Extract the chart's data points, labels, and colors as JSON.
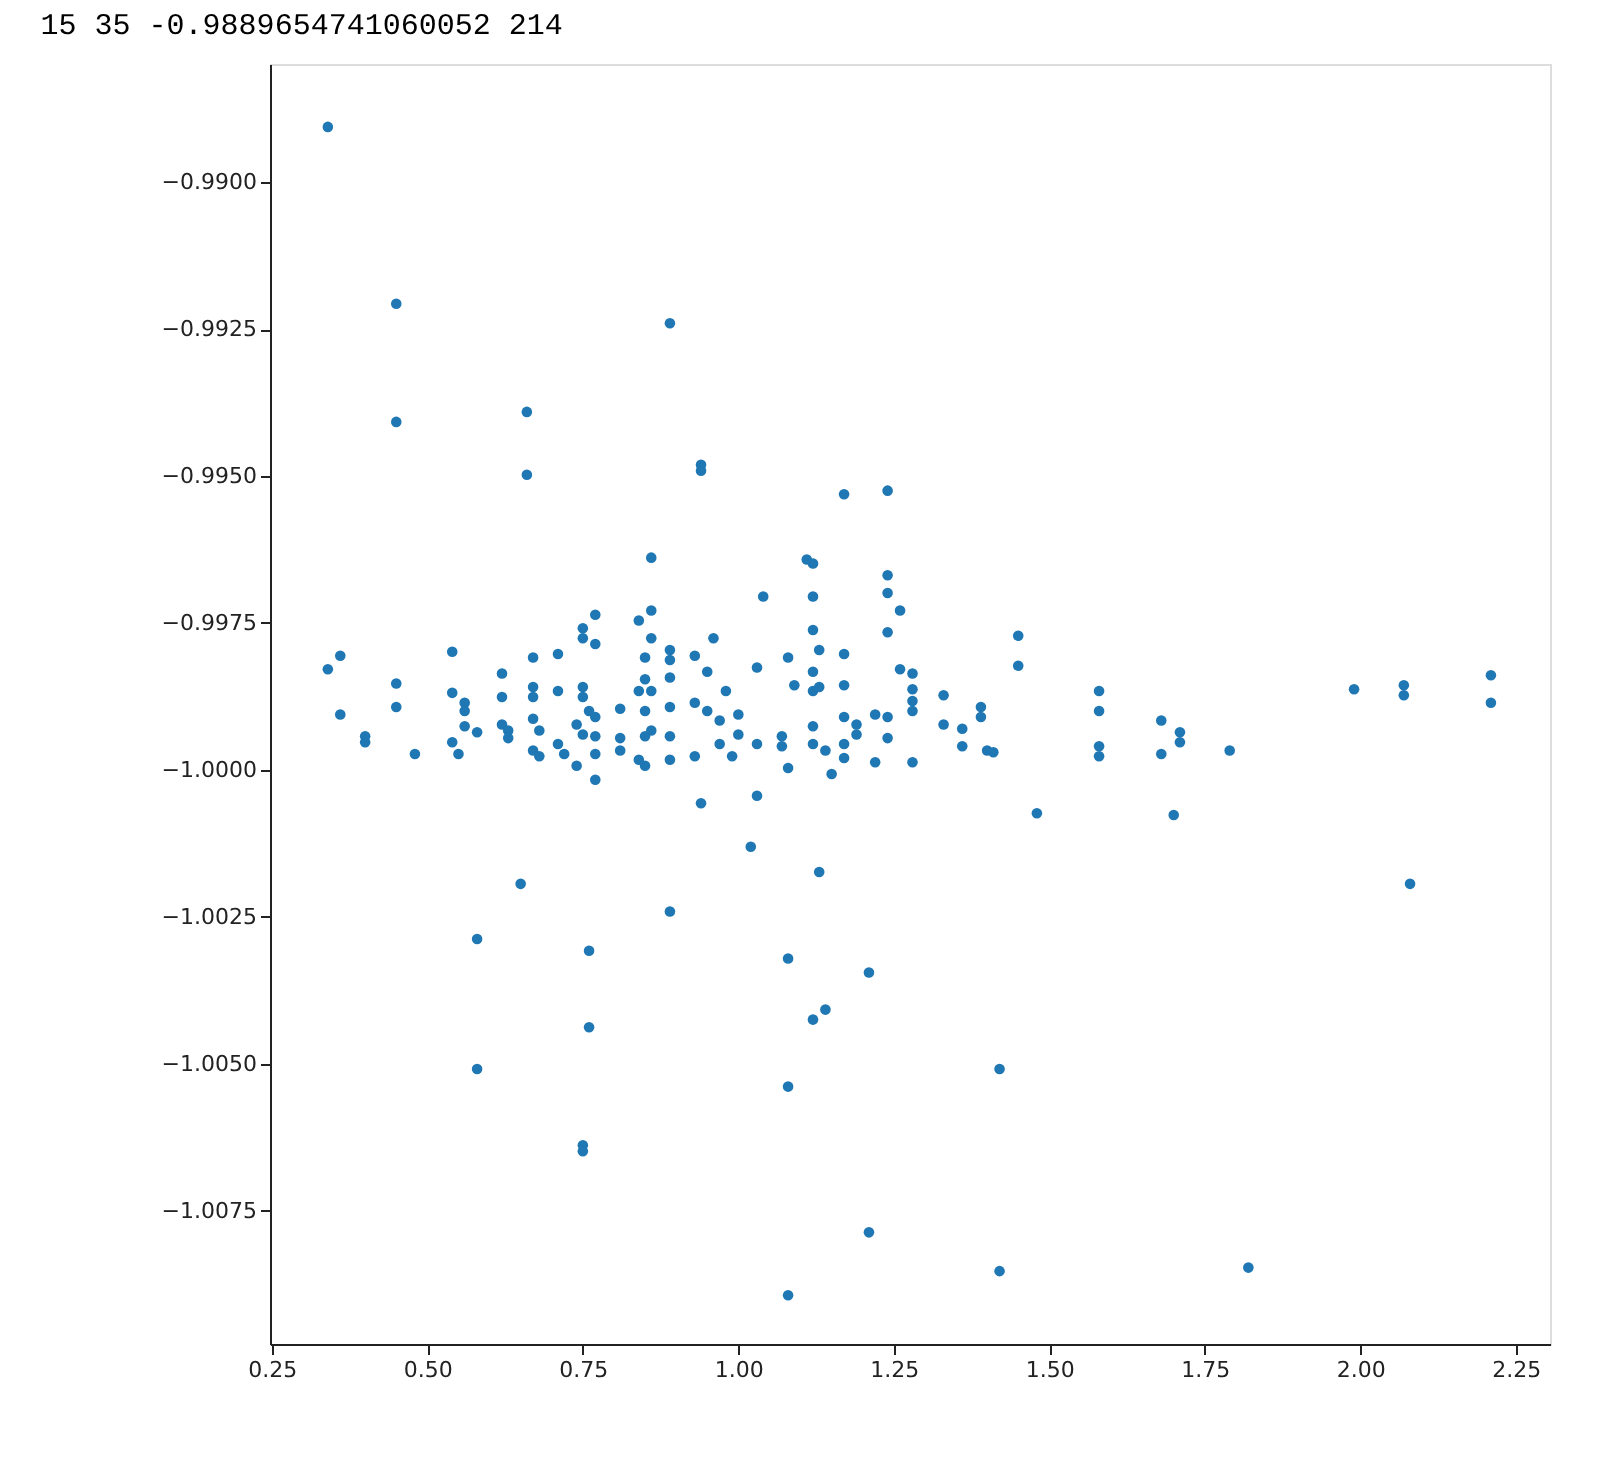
{
  "chart_data": {
    "type": "scatter",
    "title": "15 35 -0.9889654741060052      214",
    "xlim": [
      0.247,
      2.305
    ],
    "ylim": [
      -1.00977,
      -0.98799
    ],
    "xticks": [
      0.25,
      {
        "value": 0.5,
        "label": "0.50"
      },
      0.75,
      {
        "value": 1.0,
        "label": "1.00"
      },
      1.25,
      {
        "value": 1.5,
        "label": "1.50"
      },
      1.75,
      {
        "value": 2.0,
        "label": "2.00"
      },
      2.25
    ],
    "yticks": [
      {
        "value": -0.99,
        "label": "−0.9900"
      },
      {
        "value": -0.9925,
        "label": "−0.9925"
      },
      {
        "value": -0.995,
        "label": "−0.9950"
      },
      {
        "value": -0.9975,
        "label": "−0.9975"
      },
      {
        "value": -1.0,
        "label": "−1.0000"
      },
      {
        "value": -1.0025,
        "label": "−1.0025"
      },
      {
        "value": -1.005,
        "label": "−1.0050"
      },
      {
        "value": -1.0075,
        "label": "−1.0075"
      }
    ],
    "grid": false,
    "marker": "circle",
    "series": [
      {
        "color": "#1f77b4",
        "x": [
          0.34,
          0.36,
          0.36,
          0.4,
          0.4,
          0.45,
          0.45,
          0.48,
          0.54,
          0.54,
          0.56,
          0.56,
          0.56,
          0.54,
          0.55,
          0.58,
          0.62,
          0.62,
          0.62,
          0.63,
          0.63,
          0.67,
          0.67,
          0.67,
          0.67,
          0.68,
          0.67,
          0.68,
          0.71,
          0.71,
          0.71,
          0.72,
          0.74,
          0.74,
          0.75,
          0.75,
          0.75,
          0.75,
          0.75,
          0.76,
          0.77,
          0.77,
          0.77,
          0.77,
          0.77,
          0.77,
          0.81,
          0.81,
          0.81,
          0.84,
          0.84,
          0.84,
          0.85,
          0.85,
          0.85,
          0.85,
          0.85,
          0.86,
          0.86,
          0.86,
          0.86,
          0.86,
          0.89,
          0.89,
          0.89,
          0.89,
          0.89,
          0.89,
          0.93,
          0.93,
          0.93,
          0.94,
          0.96,
          0.95,
          0.98,
          0.95,
          0.97,
          1.0,
          1.0,
          0.97,
          0.99,
          1.03,
          1.03,
          1.03,
          1.04,
          1.07,
          1.07,
          1.08,
          1.09,
          1.08,
          1.11,
          1.12,
          1.12,
          1.12,
          1.12,
          1.12,
          1.13,
          1.13,
          1.12,
          1.12,
          1.14,
          1.15,
          1.17,
          1.17,
          1.17,
          1.17,
          1.17,
          1.19,
          1.19,
          1.22,
          1.22,
          1.24,
          1.24,
          1.24,
          1.26,
          1.26,
          1.24,
          1.24,
          1.28,
          1.28,
          1.28,
          1.28,
          1.28,
          1.33,
          1.33,
          1.36,
          1.36,
          1.39,
          1.39,
          1.4,
          1.41,
          1.45,
          1.45,
          1.48,
          1.58,
          1.58,
          1.58,
          1.58,
          1.68,
          1.68,
          1.71,
          1.71,
          1.7,
          1.79,
          1.99,
          2.07,
          2.07,
          2.21,
          2.21,
          0.34,
          0.45,
          0.45,
          0.66,
          0.66,
          0.89,
          0.94,
          0.94,
          1.17,
          1.24,
          1.02,
          1.13,
          0.65,
          0.58,
          0.58,
          0.76,
          0.76,
          0.75,
          0.75,
          0.89,
          1.08,
          1.08,
          1.12,
          1.14,
          1.21,
          1.21,
          1.08,
          1.42,
          1.42,
          1.82,
          2.08
        ],
        "values": [
          -0.99829,
          -0.99806,
          -0.99906,
          -0.99943,
          -0.99953,
          -0.99853,
          -0.99893,
          -0.99973,
          -0.99799,
          -0.99869,
          -0.99886,
          -0.999,
          -0.99926,
          -0.99953,
          -0.99973,
          -0.99936,
          -0.99836,
          -0.99876,
          -0.99923,
          -0.99933,
          -0.99946,
          -0.99809,
          -0.99859,
          -0.99876,
          -0.99913,
          -0.99933,
          -0.99967,
          -0.99977,
          -0.99803,
          -0.99866,
          -0.99956,
          -0.99973,
          -0.99923,
          -0.99993,
          -0.99759,
          -0.99776,
          -0.99859,
          -0.99876,
          -0.9994,
          -0.999,
          -0.99736,
          -0.99786,
          -0.9991,
          -0.99943,
          -0.99973,
          -1.00017,
          -0.99896,
          -0.99946,
          -0.99967,
          -0.99746,
          -0.99866,
          -0.99983,
          -0.99809,
          -0.99846,
          -0.999,
          -0.99943,
          -0.99993,
          -0.99639,
          -0.99729,
          -0.99776,
          -0.99866,
          -0.99933,
          -0.99796,
          -0.99813,
          -0.99843,
          -0.99893,
          -0.99943,
          -0.99983,
          -0.99806,
          -0.99886,
          -0.99977,
          -1.00057,
          -0.99776,
          -0.99833,
          -0.99866,
          -0.999,
          -0.99916,
          -0.99906,
          -0.9994,
          -0.99956,
          -0.99977,
          -0.99826,
          -0.99956,
          -1.00044,
          -0.99705,
          -0.99943,
          -0.9996,
          -0.99809,
          -0.99856,
          -0.99997,
          -0.99642,
          -0.99649,
          -0.99705,
          -0.99762,
          -0.99833,
          -0.99866,
          -0.99796,
          -0.99859,
          -0.99926,
          -0.99956,
          -0.99967,
          -1.00007,
          -0.99803,
          -0.99856,
          -0.9991,
          -0.99956,
          -0.9998,
          -0.99923,
          -0.9994,
          -0.99906,
          -0.99987,
          -0.99669,
          -0.99699,
          -0.99766,
          -0.99729,
          -0.99829,
          -0.9991,
          -0.99946,
          -0.99836,
          -0.99863,
          -0.99883,
          -0.999,
          -0.99987,
          -0.99873,
          -0.99923,
          -0.9993,
          -0.9996,
          -0.99893,
          -0.9991,
          -0.99967,
          -0.9997,
          -0.99772,
          -0.99823,
          -1.00074,
          -0.99866,
          -0.999,
          -0.9996,
          -0.99977,
          -0.99916,
          -0.99973,
          -0.99936,
          -0.99953,
          -1.00077,
          -0.99967,
          -0.99863,
          -0.99856,
          -0.99873,
          -0.99839,
          -0.99886,
          -0.98906,
          -0.99207,
          -0.99408,
          -0.99391,
          -0.99498,
          -0.9924,
          -0.99481,
          -0.99491,
          -0.99531,
          -0.99525,
          -1.00131,
          -1.00174,
          -1.00194,
          -1.00288,
          -1.00509,
          -1.00308,
          -1.00438,
          -1.00639,
          -1.00649,
          -1.00241,
          -1.00321,
          -1.00539,
          -1.00425,
          -1.00408,
          -1.00345,
          -1.00787,
          -1.00894,
          -1.00509,
          -1.00853,
          -1.00847,
          -1.00194
        ]
      }
    ]
  }
}
